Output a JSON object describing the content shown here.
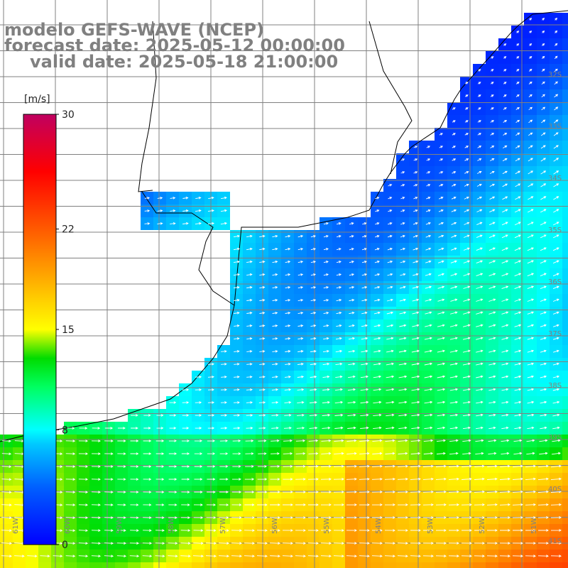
{
  "header": {
    "line1": "modelo GEFS-WAVE (NCEP)",
    "line2": "forecast date: 2025-05-12 00:00:00",
    "line3": "valid date: 2025-05-18 21:00:00"
  },
  "colorbar": {
    "unit": "[m/s]",
    "ticks": [
      "30",
      "22",
      "15",
      "8",
      "0"
    ],
    "tick_values": [
      30,
      22,
      15,
      8,
      0
    ],
    "range": [
      0,
      30
    ],
    "colors": [
      "#0000ff",
      "#0060ff",
      "#00c0ff",
      "#00ffff",
      "#00ff60",
      "#00e000",
      "#80ff00",
      "#ffff00",
      "#ffa000",
      "#ff6000",
      "#ff0000",
      "#c00060"
    ]
  },
  "map": {
    "lon_labels": [
      "61W",
      "60W",
      "59W",
      "58W",
      "57W",
      "56W",
      "55W",
      "54W",
      "53W",
      "52W",
      "51W"
    ],
    "lat_labels": [
      "32S",
      "33S",
      "34S",
      "35S",
      "36S",
      "37S",
      "38S",
      "39S",
      "40S",
      "41S"
    ],
    "grid_lines": true,
    "land_color": "#ffffff",
    "coast_color": "#000000",
    "arrow_color": "#ffffff"
  }
}
